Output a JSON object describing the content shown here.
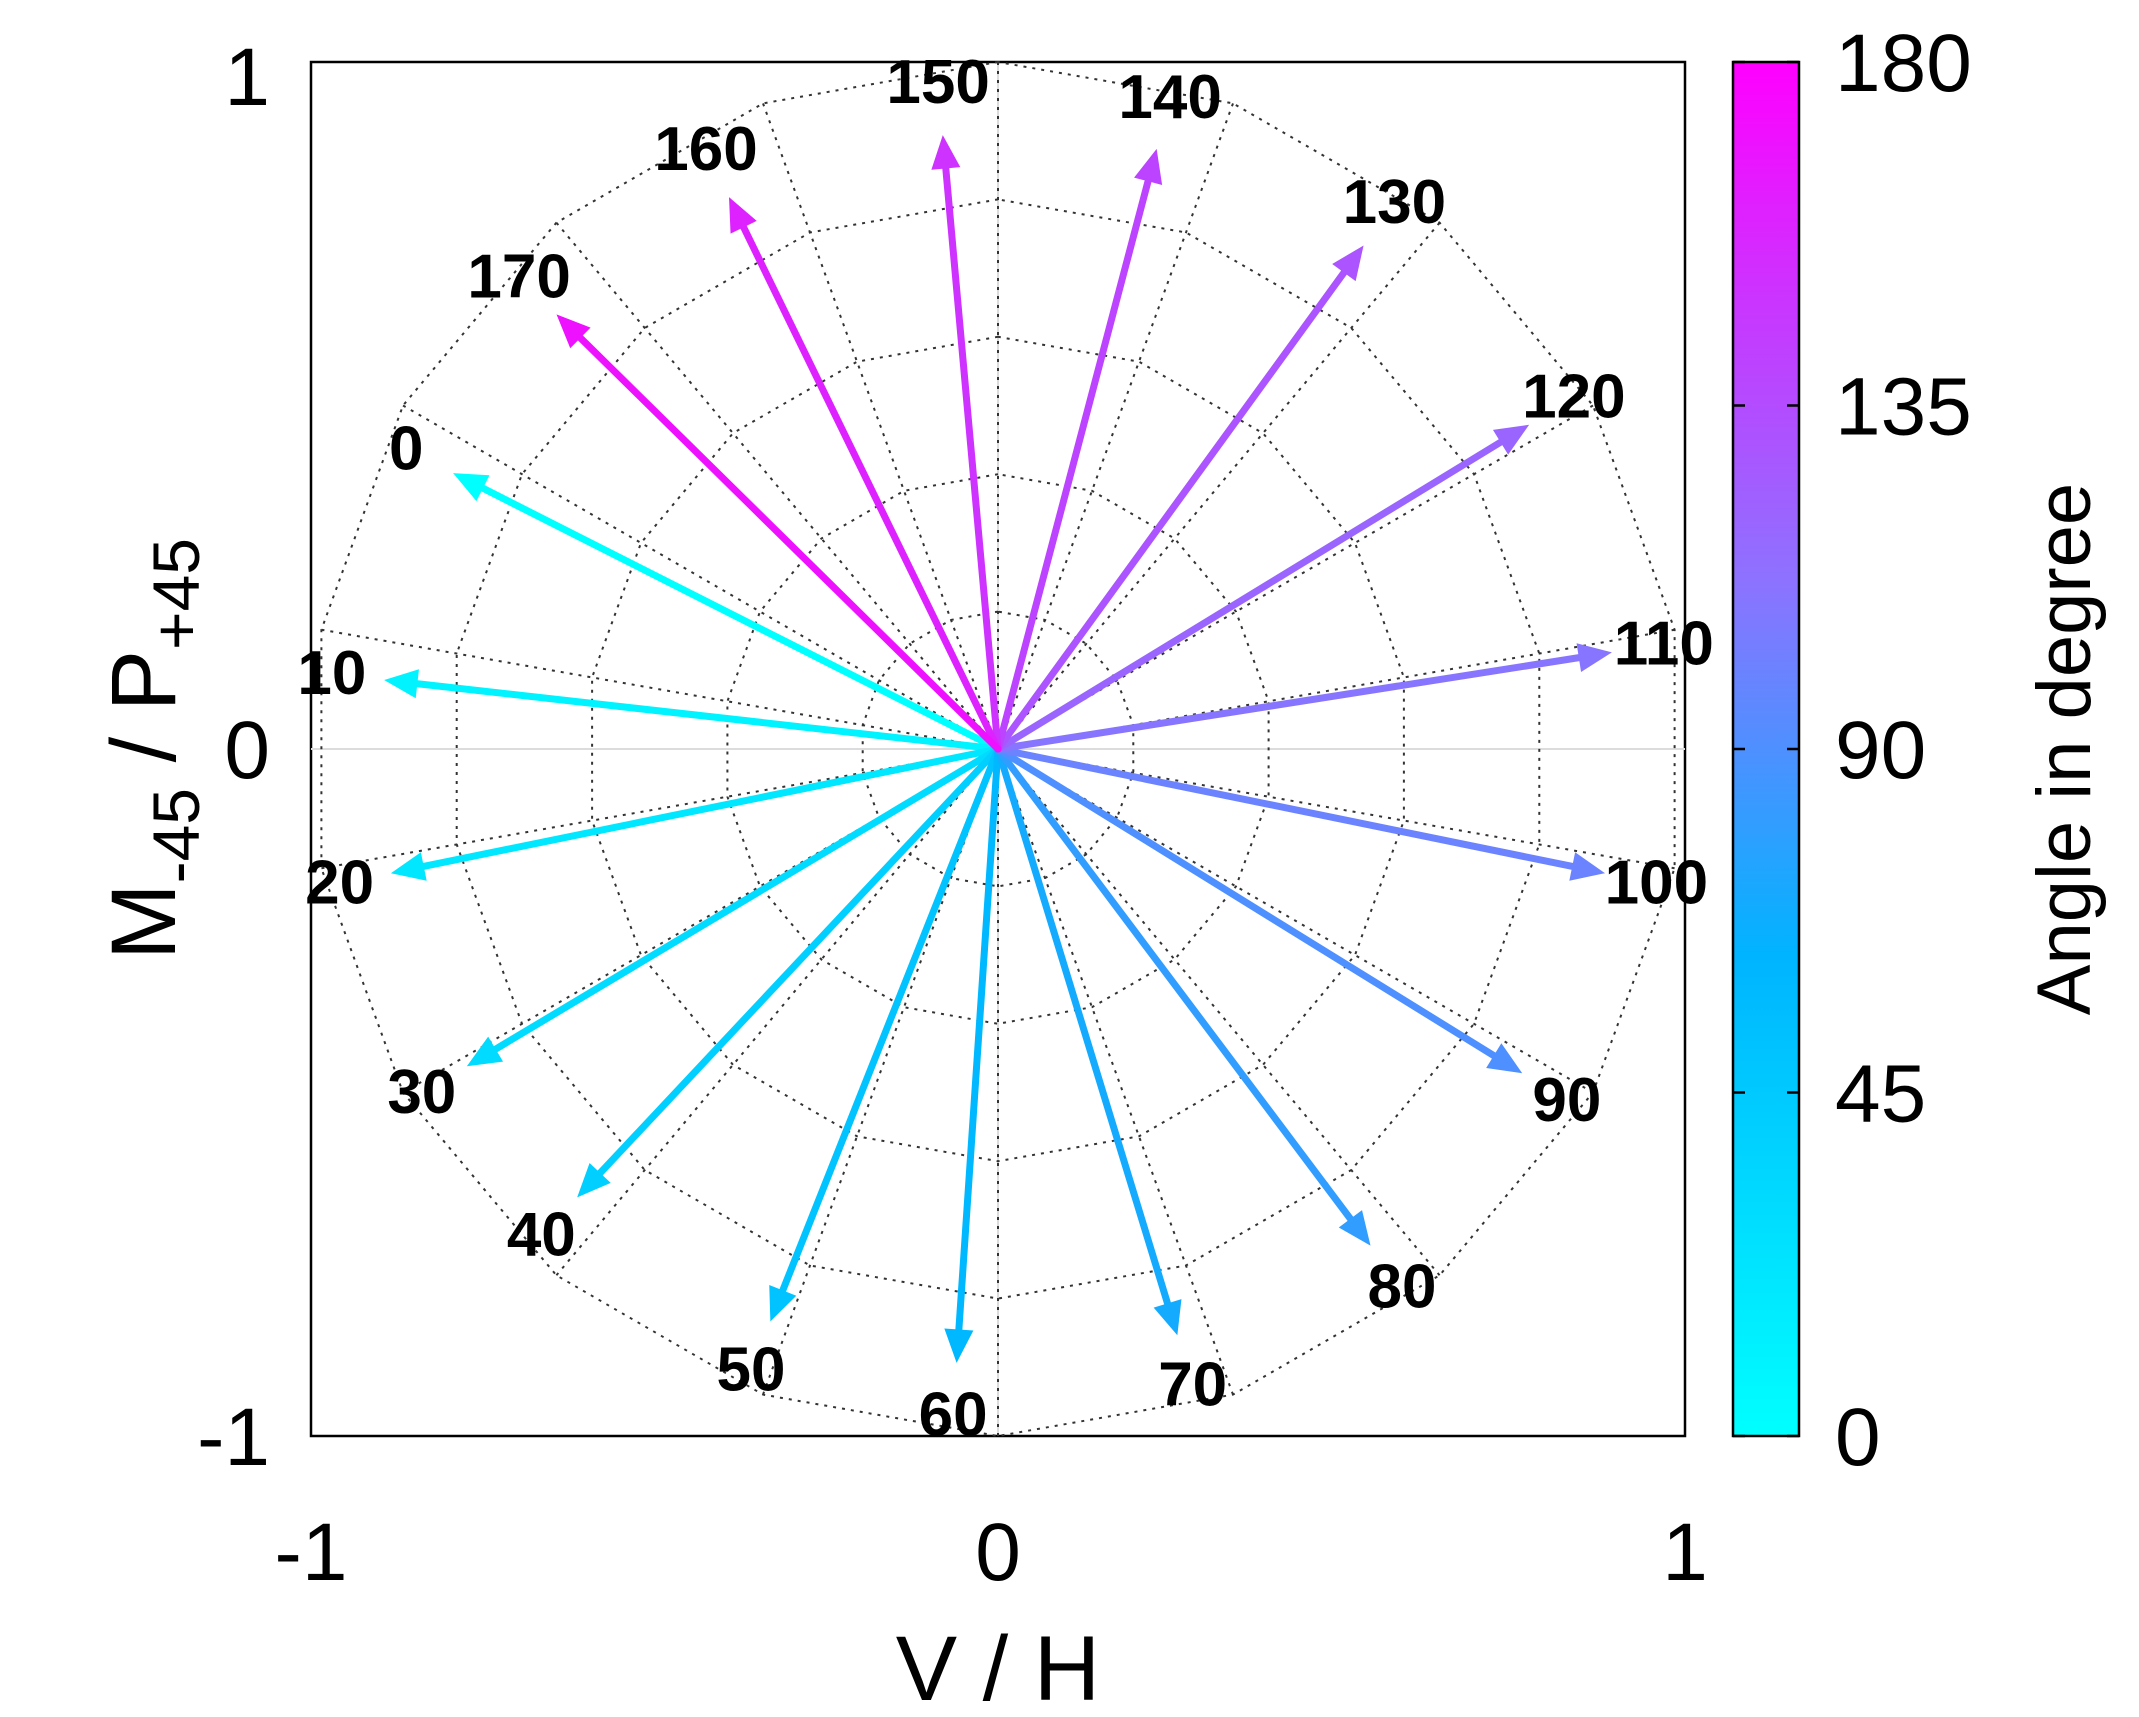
{
  "chart_data": {
    "type": "polar-vector",
    "xlabel": "V / H",
    "ylabel_main": "M",
    "ylabel_sub1": "-45",
    "ylabel_mid": " / P",
    "ylabel_sub2": "+45",
    "xlim": [
      -1,
      1
    ],
    "ylim": [
      -1,
      1
    ],
    "x_ticks": [
      "-1",
      "0",
      "1"
    ],
    "y_ticks": [
      "-1",
      "0",
      "1"
    ],
    "grid_rings": [
      0.2,
      0.4,
      0.6,
      0.8,
      1.0
    ],
    "grid_spokes": 18,
    "vectors": [
      {
        "label": "0",
        "angle": 0,
        "x": -0.79,
        "y": 0.4
      },
      {
        "label": "10",
        "angle": 10,
        "x": -0.89,
        "y": 0.1
      },
      {
        "label": "20",
        "angle": 20,
        "x": -0.88,
        "y": -0.18
      },
      {
        "label": "30",
        "angle": 30,
        "x": -0.77,
        "y": -0.46
      },
      {
        "label": "40",
        "angle": 40,
        "x": -0.61,
        "y": -0.65
      },
      {
        "label": "50",
        "angle": 50,
        "x": -0.33,
        "y": -0.83
      },
      {
        "label": "60",
        "angle": 60,
        "x": -0.06,
        "y": -0.89
      },
      {
        "label": "70",
        "angle": 70,
        "x": 0.26,
        "y": -0.85
      },
      {
        "label": "80",
        "angle": 80,
        "x": 0.54,
        "y": -0.72
      },
      {
        "label": "90",
        "angle": 90,
        "x": 0.76,
        "y": -0.47
      },
      {
        "label": "100",
        "angle": 100,
        "x": 0.88,
        "y": -0.18
      },
      {
        "label": "110",
        "angle": 110,
        "x": 0.89,
        "y": 0.14
      },
      {
        "label": "120",
        "angle": 120,
        "x": 0.77,
        "y": 0.47
      },
      {
        "label": "130",
        "angle": 130,
        "x": 0.53,
        "y": 0.73
      },
      {
        "label": "140",
        "angle": 140,
        "x": 0.23,
        "y": 0.87
      },
      {
        "label": "150",
        "angle": 150,
        "x": -0.08,
        "y": 0.89
      },
      {
        "label": "160",
        "angle": 160,
        "x": -0.39,
        "y": 0.8
      },
      {
        "label": "170",
        "angle": 170,
        "x": -0.64,
        "y": 0.63
      }
    ],
    "colorbar": {
      "label": "Angle in degree",
      "range": [
        0,
        180
      ],
      "ticks": [
        "0",
        "45",
        "90",
        "135",
        "180"
      ],
      "colors": [
        "#00ffff",
        "#00b4ff",
        "#8c73ff",
        "#ff00ff"
      ]
    }
  }
}
